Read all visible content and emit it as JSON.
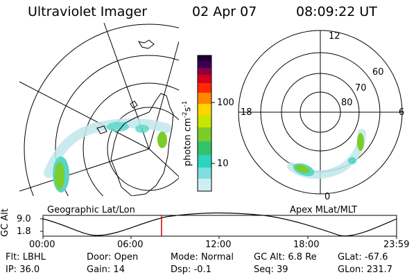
{
  "header": {
    "title": "Ultraviolet Imager",
    "date": "02 Apr 07",
    "time": "08:09:22 UT"
  },
  "colorbar": {
    "unit_label": "photon cm",
    "unit_sup1": "-2",
    "unit_mid": "s",
    "unit_sup2": "-1",
    "ticks": [
      "100",
      "10"
    ],
    "scale": "log"
  },
  "geo_panel": {
    "label": "Geographic Lat/Lon"
  },
  "apex_panel": {
    "label": "Apex MLat/MLT",
    "mlt_labels": {
      "top": "12",
      "left": "18",
      "right": "6",
      "bottom": "0"
    },
    "lat_labels": [
      "60",
      "70",
      "80"
    ]
  },
  "timeline": {
    "ylabel": "GC Alt",
    "yticks": [
      "9.0",
      "1.8"
    ],
    "xticks": [
      "00:00",
      "06:00",
      "12:00",
      "18:00",
      "23:59"
    ],
    "marker_time": "08:09",
    "marker_color": "#cc0000"
  },
  "info": {
    "row1": [
      {
        "key": "Flt:",
        "val": "LBHL"
      },
      {
        "key": "Door:",
        "val": "Open"
      },
      {
        "key": "Mode:",
        "val": "Normal"
      },
      {
        "key": "GC Alt:",
        "val": "6.8 Re"
      },
      {
        "key": "GLat:",
        "val": "-67.6"
      }
    ],
    "row2": [
      {
        "key": "IP:",
        "val": "36.0"
      },
      {
        "key": "Gain:",
        "val": "14"
      },
      {
        "key": "Dsp:",
        "val": "-0.1"
      },
      {
        "key": "Seq:",
        "val": "39"
      },
      {
        "key": "GLon:",
        "val": "231.7"
      }
    ]
  },
  "colors": {
    "aurora_low": "#bfe8ea",
    "aurora_mid": "#59d6c8",
    "aurora_high": "#7ccc2a"
  }
}
